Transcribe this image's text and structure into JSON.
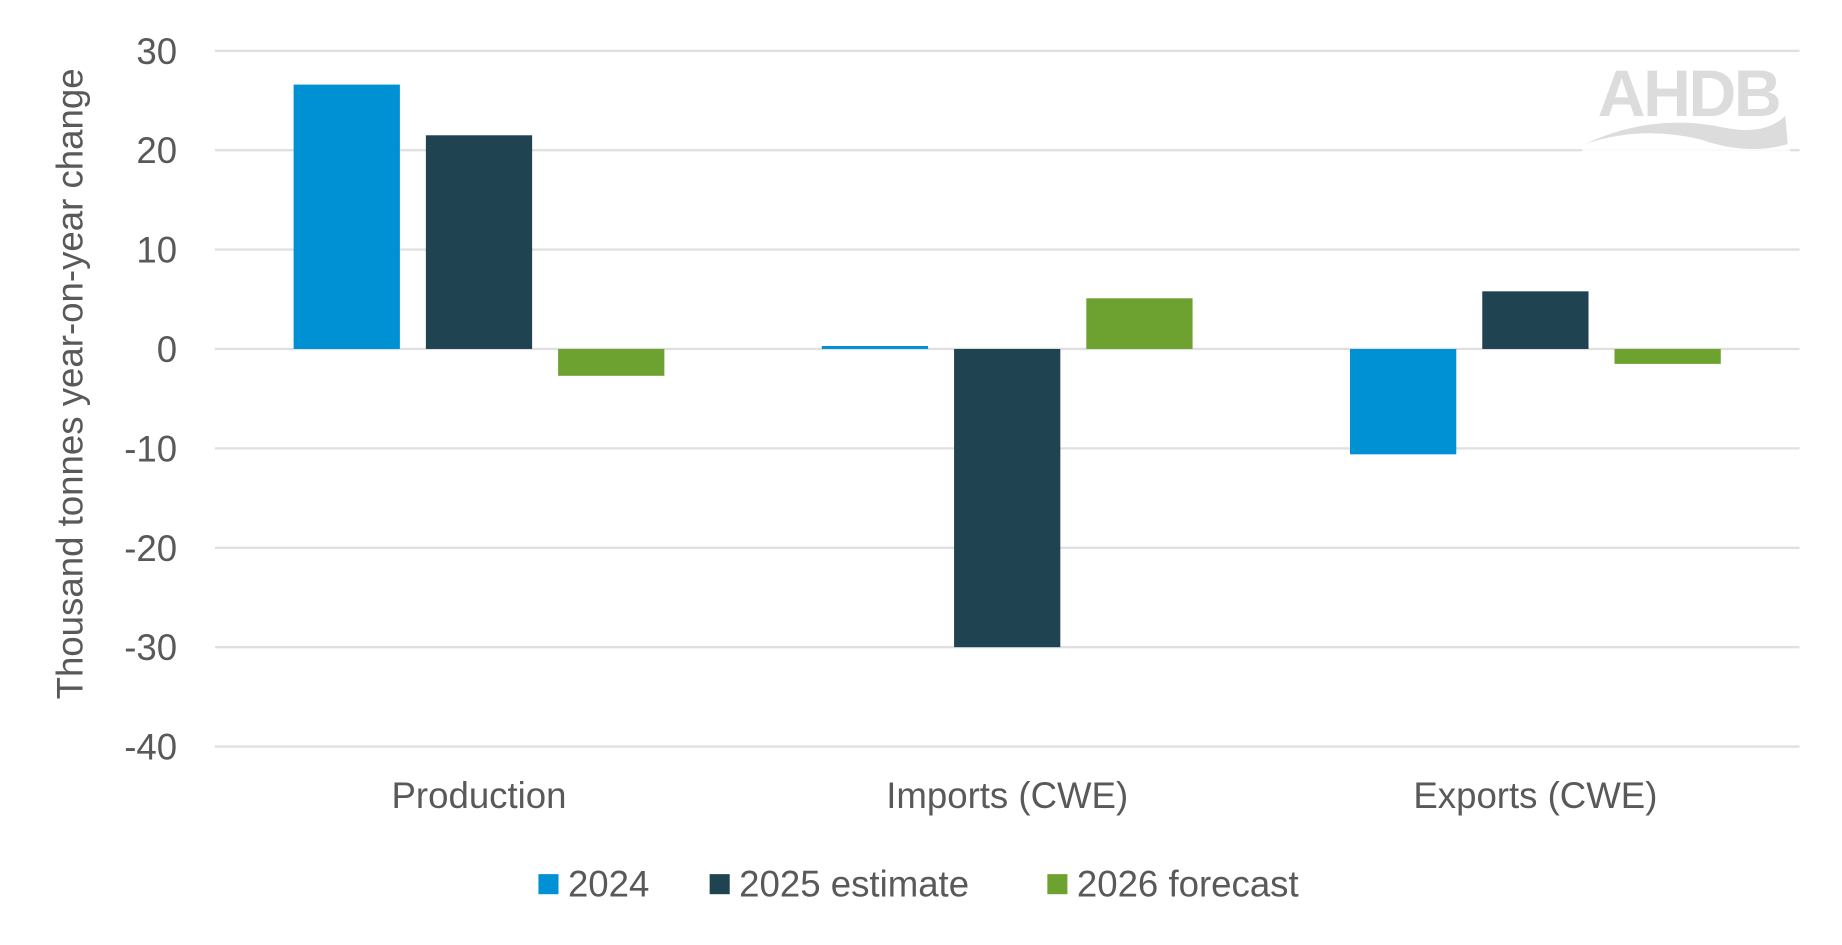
{
  "chart_data": {
    "type": "bar",
    "title": "",
    "xlabel": "",
    "ylabel": "Thousand tonnes year-on-year change",
    "ylim": [
      -40,
      30
    ],
    "yticks": [
      30,
      20,
      10,
      0,
      -10,
      -20,
      -30,
      -40
    ],
    "grid": true,
    "legend_position": "bottom",
    "categories": [
      "Production",
      "Imports (CWE)",
      "Exports (CWE)"
    ],
    "series": [
      {
        "name": "2024",
        "color": "#0091D5",
        "values": [
          26.6,
          0.3,
          -10.6
        ]
      },
      {
        "name": "2025 estimate",
        "color": "#204352",
        "values": [
          21.5,
          -30.0,
          5.8
        ]
      },
      {
        "name": "2026 forecast",
        "color": "#6DA230",
        "values": [
          -2.7,
          5.1,
          -1.5
        ]
      }
    ]
  },
  "logo": {
    "text": "AHDB"
  }
}
